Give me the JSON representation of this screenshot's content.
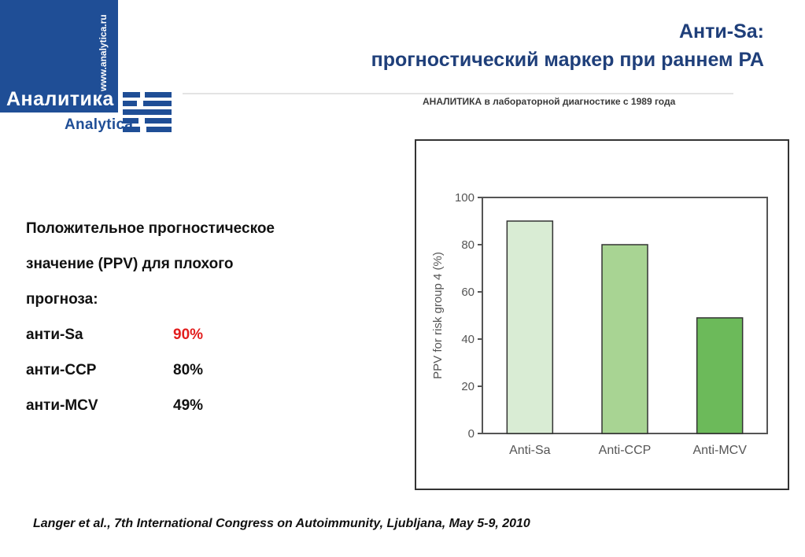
{
  "logo": {
    "url": "www.analytica.ru",
    "name_ru": "Аналитика",
    "name_en": "Analytica",
    "brand_color": "#1f4e96"
  },
  "tagline": "АНАЛИТИКА в лабораторной диагностике с 1989 года",
  "title": {
    "line1": "Анти-Sa:",
    "line2": "прогностический маркер при раннем РА"
  },
  "info": {
    "lines": [
      "Положительное прогностическое",
      "значение (PPV) для плохого",
      "прогноза:"
    ],
    "rows": [
      {
        "name": "анти-Sa",
        "value": "90%",
        "highlight": true
      },
      {
        "name": "анти-CCP",
        "value": "80%",
        "highlight": false
      },
      {
        "name": "анти-MCV",
        "value": "49%",
        "highlight": false
      }
    ],
    "highlight_color": "#e21d1d"
  },
  "chart_data": {
    "type": "bar",
    "categories": [
      "Anti-Sa",
      "Anti-CCP",
      "Anti-MCV"
    ],
    "values": [
      90,
      80,
      49
    ],
    "colors": [
      "#d9ecd4",
      "#a8d493",
      "#6cba5a"
    ],
    "ylabel": "PPV for risk group 4 (%)",
    "xlabel": "",
    "ylim": [
      0,
      100
    ],
    "yticks": [
      0,
      20,
      40,
      60,
      80,
      100
    ],
    "grid": false
  },
  "citation": "Langer et al., 7th International Congress on Autoimmunity, Ljubljana, May 5-9, 2010"
}
